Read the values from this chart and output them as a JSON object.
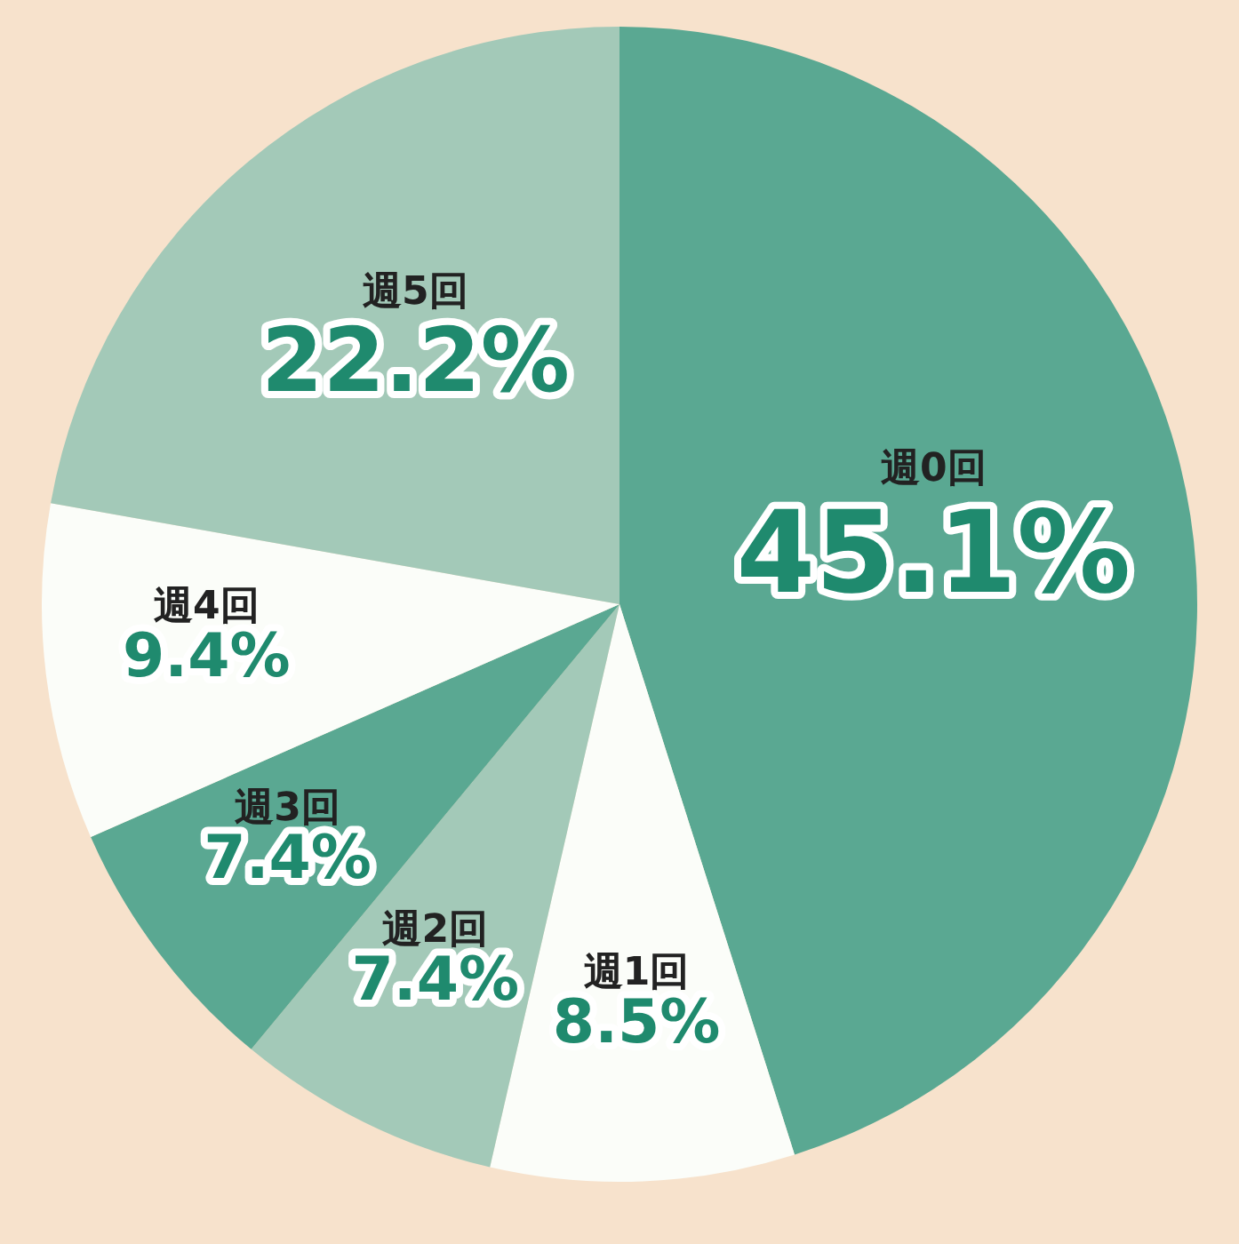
{
  "chart_data": {
    "type": "pie",
    "categories": [
      "週0回",
      "週1回",
      "週2回",
      "週3回",
      "週4回",
      "週5回"
    ],
    "values": [
      45.1,
      8.5,
      7.4,
      7.4,
      9.4,
      22.2
    ],
    "colors": [
      "#5aa892",
      "#fbfdf9",
      "#a3c9b8",
      "#5aa892",
      "#fbfdf9",
      "#a3c9b8"
    ],
    "value_labels": [
      "45.1%",
      "8.5%",
      "7.4%",
      "7.4%",
      "9.4%",
      "22.2%"
    ],
    "legend": false
  }
}
